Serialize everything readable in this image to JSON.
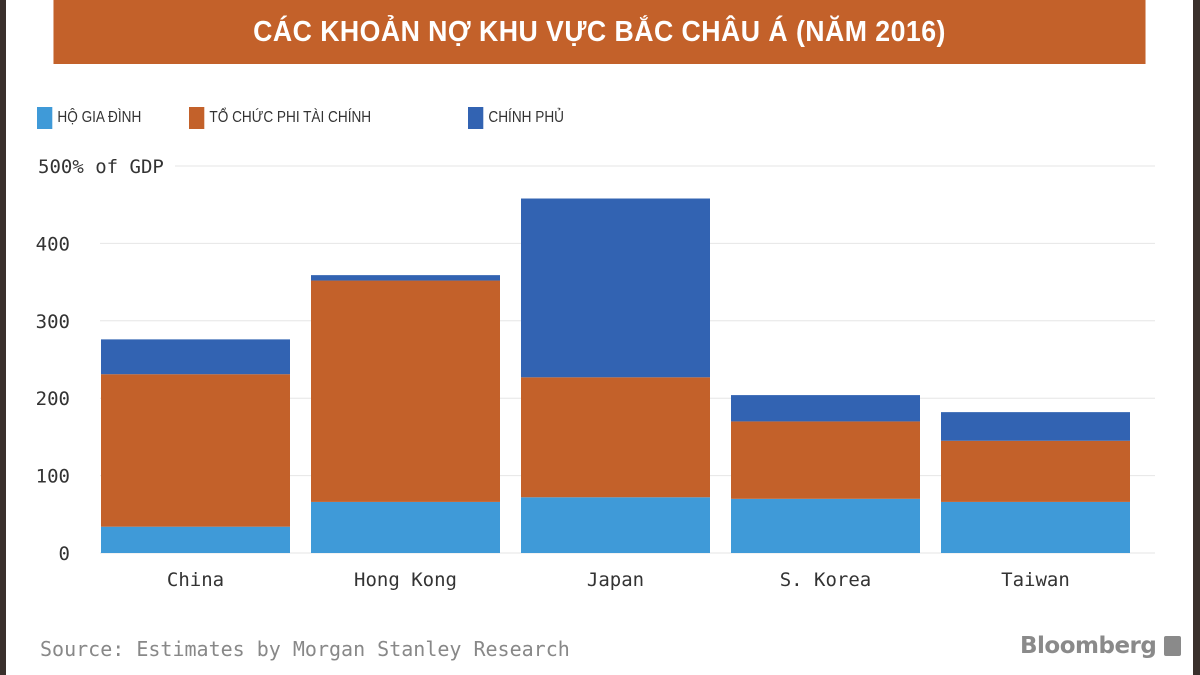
{
  "chart_data": {
    "type": "bar",
    "stacked": true,
    "title": "CÁC KHOẢN NỢ KHU VỰC BẮC CHÂU Á (NĂM 2016)",
    "ylabel": "500% of GDP",
    "categories": [
      "China",
      "Hong Kong",
      "Japan",
      "S. Korea",
      "Taiwan"
    ],
    "series": [
      {
        "name": "HỘ GIA ĐÌNH",
        "color": "#3f9ad8",
        "values": [
          34,
          66,
          72,
          70,
          66
        ]
      },
      {
        "name": "TỔ CHỨC PHI TÀI CHÍNH",
        "color": "#c3612a",
        "values": [
          197,
          286,
          155,
          100,
          79
        ]
      },
      {
        "name": "CHÍNH PHỦ",
        "color": "#3263b2",
        "values": [
          45,
          7,
          231,
          34,
          37
        ]
      }
    ],
    "yticks": [
      "0",
      "100",
      "200",
      "300",
      "400"
    ],
    "ylim": [
      0,
      500
    ],
    "grid": true,
    "legend": "top-left"
  },
  "source": "Source: Estimates by Morgan Stanley Research",
  "logo": "Bloomberg"
}
